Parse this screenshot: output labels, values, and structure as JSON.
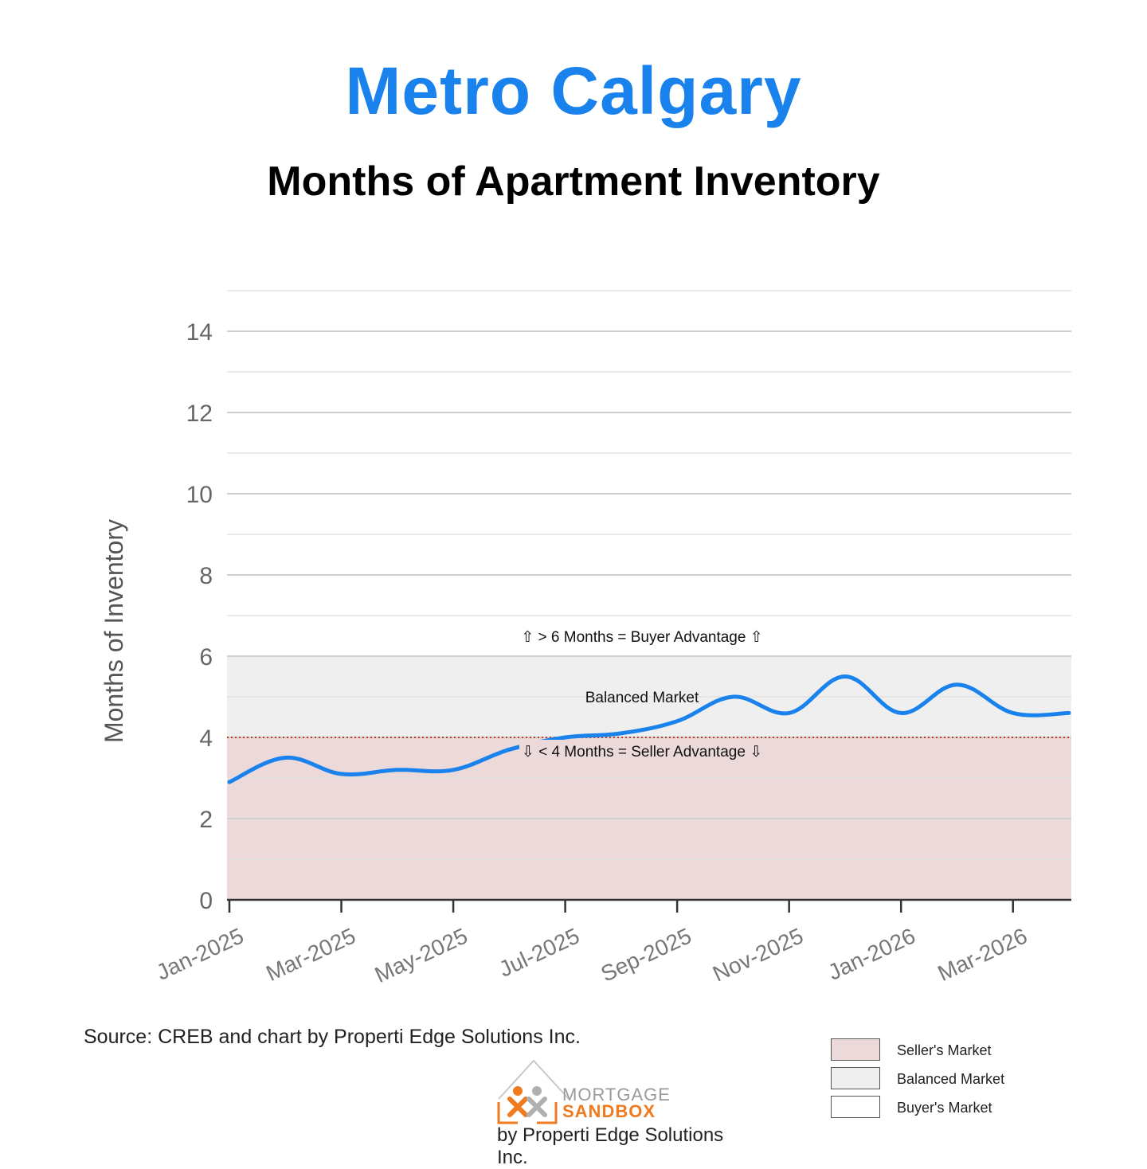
{
  "header": {
    "title": "Metro Calgary",
    "subtitle": "Months of Apartment Inventory"
  },
  "chart_data": {
    "type": "line",
    "ylabel": "Months of Inventory",
    "xlabel": "",
    "ylim": [
      0,
      15
    ],
    "yticks": [
      0,
      2,
      4,
      6,
      8,
      10,
      12,
      14
    ],
    "x_tick_labels": [
      "Jan-2025",
      "Mar-2025",
      "May-2025",
      "Jul-2025",
      "Sep-2025",
      "Nov-2025",
      "Jan-2026",
      "Mar-2026"
    ],
    "x": [
      "Jan-2025",
      "Feb-2025",
      "Mar-2025",
      "Apr-2025",
      "May-2025",
      "Jun-2025",
      "Jul-2025",
      "Aug-2025",
      "Sep-2025",
      "Oct-2025",
      "Nov-2025",
      "Dec-2025",
      "Jan-2026",
      "Feb-2026",
      "Mar-2026",
      "Apr-2026"
    ],
    "series": [
      {
        "values": [
          2.9,
          3.5,
          3.1,
          3.2,
          3.2,
          3.7,
          4.0,
          4.1,
          4.4,
          5.0,
          4.6,
          5.5,
          4.6,
          5.3,
          4.6,
          4.6
        ]
      }
    ],
    "bands": [
      {
        "label": "Seller's Market",
        "from": 0,
        "to": 4,
        "color": "#ecd9d9"
      },
      {
        "label": "Balanced Market",
        "from": 4,
        "to": 6,
        "color": "#efefef"
      },
      {
        "label": "Buyer's Market",
        "from": 6,
        "to": 15,
        "color": "#ffffff"
      }
    ],
    "reference_line": {
      "value": 4,
      "color": "#c0392b",
      "style": "dotted"
    },
    "annotations": [
      {
        "text": "⇧ > 6 Months = Buyer Advantage ⇧"
      },
      {
        "text": "Balanced Market"
      },
      {
        "text": "⇩ < 4 Months = Seller Advantage ⇩"
      }
    ],
    "legend": {
      "position": "bottom-right",
      "items": [
        "Seller's Market",
        "Balanced Market",
        "Buyer's Market"
      ]
    },
    "grid": true,
    "line_color": "#1a82ec"
  },
  "footer": {
    "source": "Source: CREB and chart by Properti Edge Solutions Inc.",
    "logo_line1": "MORTGAGE",
    "logo_line2": "SANDBOX",
    "logo_by": "by Properti Edge Solutions Inc."
  }
}
